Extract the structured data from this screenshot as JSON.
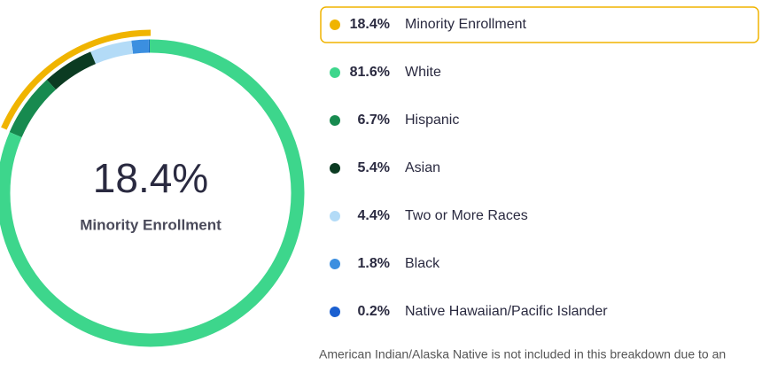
{
  "chart_data": {
    "type": "donut",
    "categories": [
      "Minority Enrollment",
      "White",
      "Hispanic",
      "Asian",
      "Two or More Races",
      "Black",
      "Native Hawaiian/Pacific Islander"
    ],
    "values": [
      18.4,
      81.6,
      6.7,
      5.4,
      4.4,
      1.8,
      0.2
    ],
    "value_labels": [
      "18.4%",
      "81.6%",
      "6.7%",
      "5.4%",
      "4.4%",
      "1.8%",
      "0.2%"
    ],
    "colors": [
      "#f0b400",
      "#3dd68c",
      "#178a4f",
      "#0b3b22",
      "#b3dbf7",
      "#3b8fe0",
      "#1a5fd0"
    ],
    "note": "American Indian/Alaska Native is not included in this breakdown due to an"
  }
}
